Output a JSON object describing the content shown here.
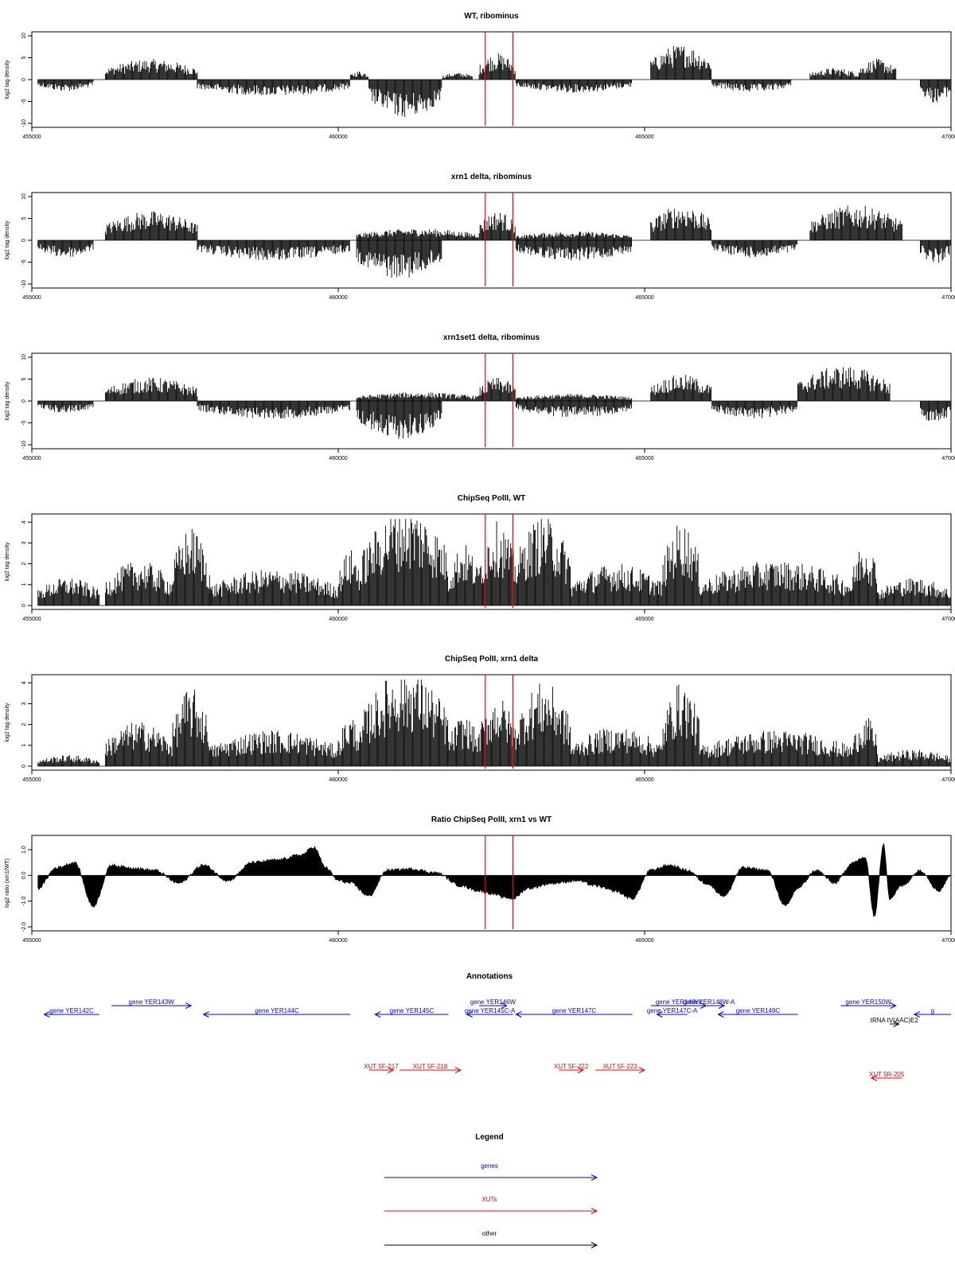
{
  "axis": {
    "xlim": [
      455000,
      470000
    ],
    "xticks": [
      455000,
      460000,
      465000,
      470000
    ],
    "xtick_labels": [
      "455000",
      "460000",
      "465000",
      "470000"
    ]
  },
  "marker_lines": {
    "positions": [
      462400,
      462850
    ],
    "color": "#ff0000"
  },
  "chart_data": [
    {
      "type": "bar",
      "title": "WT, ribominus",
      "ylabel": "log2 tag density",
      "ylim": [
        -10,
        10
      ],
      "yticks": [
        -10,
        -5,
        0,
        5,
        10
      ],
      "ytick_labels": [
        "-10",
        "-5",
        "0",
        "5",
        "10"
      ],
      "segments": [
        {
          "start": 455100,
          "end": 456000,
          "sign": -1,
          "level": 2.0
        },
        {
          "start": 456200,
          "end": 457700,
          "sign": 1,
          "level": 3.5
        },
        {
          "start": 457700,
          "end": 460200,
          "sign": -1,
          "level": 2.8
        },
        {
          "start": 460200,
          "end": 460500,
          "sign": 1,
          "level": 1.5
        },
        {
          "start": 460500,
          "end": 461700,
          "sign": -1,
          "level": 6.5
        },
        {
          "start": 461700,
          "end": 462200,
          "sign": 1,
          "level": 1.2
        },
        {
          "start": 462300,
          "end": 462900,
          "sign": 1,
          "level": 4.5
        },
        {
          "start": 462900,
          "end": 464800,
          "sign": -1,
          "level": 2.2
        },
        {
          "start": 465100,
          "end": 466100,
          "sign": 1,
          "level": 6.0
        },
        {
          "start": 466100,
          "end": 467400,
          "sign": -1,
          "level": 2.2
        },
        {
          "start": 467700,
          "end": 468500,
          "sign": 1,
          "level": 2.0
        },
        {
          "start": 468500,
          "end": 469100,
          "sign": 1,
          "level": 3.5
        },
        {
          "start": 469500,
          "end": 470000,
          "sign": -1,
          "level": 4.0
        }
      ]
    },
    {
      "type": "bar",
      "title": "xrn1 delta, ribominus",
      "ylabel": "log2 tag density",
      "ylim": [
        -10,
        10
      ],
      "yticks": [
        -10,
        -5,
        0,
        5,
        10
      ],
      "ytick_labels": [
        "-10",
        "-5",
        "0",
        "5",
        "10"
      ],
      "segments": [
        {
          "start": 455100,
          "end": 456000,
          "sign": -1,
          "level": 3.0
        },
        {
          "start": 456200,
          "end": 457700,
          "sign": 1,
          "level": 5.0
        },
        {
          "start": 457700,
          "end": 460200,
          "sign": -1,
          "level": 3.5
        },
        {
          "start": 460300,
          "end": 461700,
          "sign": -1,
          "level": 6.5
        },
        {
          "start": 460300,
          "end": 462300,
          "sign": 1,
          "level": 2.0
        },
        {
          "start": 462300,
          "end": 462900,
          "sign": 1,
          "level": 5.0
        },
        {
          "start": 462900,
          "end": 464800,
          "sign": -1,
          "level": 3.5
        },
        {
          "start": 462900,
          "end": 464800,
          "sign": 1,
          "level": 1.5
        },
        {
          "start": 465100,
          "end": 466100,
          "sign": 1,
          "level": 6.0
        },
        {
          "start": 466100,
          "end": 467500,
          "sign": -1,
          "level": 3.0
        },
        {
          "start": 467700,
          "end": 469200,
          "sign": 1,
          "level": 6.0
        },
        {
          "start": 469500,
          "end": 470000,
          "sign": -1,
          "level": 4.0
        }
      ]
    },
    {
      "type": "bar",
      "title": "xrn1set1 delta, ribominus",
      "ylabel": "log2 tag density",
      "ylim": [
        -10,
        10
      ],
      "yticks": [
        -10,
        -5,
        0,
        5,
        10
      ],
      "ytick_labels": [
        "-10",
        "-5",
        "0",
        "5",
        "10"
      ],
      "segments": [
        {
          "start": 455100,
          "end": 456000,
          "sign": -1,
          "level": 2.0
        },
        {
          "start": 456200,
          "end": 457700,
          "sign": 1,
          "level": 4.0
        },
        {
          "start": 457700,
          "end": 460200,
          "sign": -1,
          "level": 3.0
        },
        {
          "start": 460300,
          "end": 461700,
          "sign": -1,
          "level": 6.5
        },
        {
          "start": 460300,
          "end": 462300,
          "sign": 1,
          "level": 1.5
        },
        {
          "start": 462300,
          "end": 462900,
          "sign": 1,
          "level": 4.0
        },
        {
          "start": 462900,
          "end": 464800,
          "sign": -1,
          "level": 2.8
        },
        {
          "start": 462900,
          "end": 464800,
          "sign": 1,
          "level": 1.2
        },
        {
          "start": 465100,
          "end": 466100,
          "sign": 1,
          "level": 4.5
        },
        {
          "start": 466100,
          "end": 467500,
          "sign": -1,
          "level": 3.0
        },
        {
          "start": 467500,
          "end": 469000,
          "sign": 1,
          "level": 6.0
        },
        {
          "start": 469500,
          "end": 470000,
          "sign": -1,
          "level": 4.0
        }
      ]
    },
    {
      "type": "bar",
      "title": "ChipSeq PolII, WT",
      "ylabel": "log2 tag density",
      "ylim": [
        0,
        4.2
      ],
      "yticks": [
        0,
        1,
        2,
        3,
        4
      ],
      "ytick_labels": [
        "0",
        "1",
        "2",
        "3",
        "4"
      ],
      "segments": [
        {
          "start": 455100,
          "end": 456100,
          "sign": 1,
          "level": 1.0
        },
        {
          "start": 456200,
          "end": 457300,
          "sign": 1,
          "level": 1.6
        },
        {
          "start": 457300,
          "end": 457900,
          "sign": 1,
          "level": 2.8
        },
        {
          "start": 457900,
          "end": 460000,
          "sign": 1,
          "level": 1.3
        },
        {
          "start": 460000,
          "end": 460400,
          "sign": 1,
          "level": 2.0
        },
        {
          "start": 460400,
          "end": 461800,
          "sign": 1,
          "level": 3.6
        },
        {
          "start": 461800,
          "end": 462300,
          "sign": 1,
          "level": 2.2
        },
        {
          "start": 462300,
          "end": 462900,
          "sign": 1,
          "level": 3.0
        },
        {
          "start": 462900,
          "end": 463800,
          "sign": 1,
          "level": 3.2
        },
        {
          "start": 463800,
          "end": 465300,
          "sign": 1,
          "level": 1.5
        },
        {
          "start": 465300,
          "end": 465900,
          "sign": 1,
          "level": 3.0
        },
        {
          "start": 465900,
          "end": 468400,
          "sign": 1,
          "level": 1.6
        },
        {
          "start": 468400,
          "end": 468800,
          "sign": 1,
          "level": 2.4
        },
        {
          "start": 468800,
          "end": 470000,
          "sign": 1,
          "level": 1.0
        }
      ]
    },
    {
      "type": "bar",
      "title": "ChipSeq PolII, xrn1 delta",
      "ylabel": "log2 tag density",
      "ylim": [
        0,
        4.2
      ],
      "yticks": [
        0,
        1,
        2,
        3,
        4
      ],
      "ytick_labels": [
        "0",
        "1",
        "2",
        "3",
        "4"
      ],
      "segments": [
        {
          "start": 455100,
          "end": 456100,
          "sign": 1,
          "level": 0.4
        },
        {
          "start": 456200,
          "end": 457300,
          "sign": 1,
          "level": 1.6
        },
        {
          "start": 457300,
          "end": 457900,
          "sign": 1,
          "level": 2.8
        },
        {
          "start": 457900,
          "end": 460000,
          "sign": 1,
          "level": 1.3
        },
        {
          "start": 460000,
          "end": 460400,
          "sign": 1,
          "level": 1.8
        },
        {
          "start": 460400,
          "end": 461800,
          "sign": 1,
          "level": 3.5
        },
        {
          "start": 461800,
          "end": 462300,
          "sign": 1,
          "level": 1.8
        },
        {
          "start": 462300,
          "end": 462900,
          "sign": 1,
          "level": 2.5
        },
        {
          "start": 462900,
          "end": 463800,
          "sign": 1,
          "level": 3.0
        },
        {
          "start": 463800,
          "end": 465300,
          "sign": 1,
          "level": 1.4
        },
        {
          "start": 465300,
          "end": 465900,
          "sign": 1,
          "level": 3.0
        },
        {
          "start": 465900,
          "end": 468400,
          "sign": 1,
          "level": 1.3
        },
        {
          "start": 468400,
          "end": 468800,
          "sign": 1,
          "level": 1.8
        },
        {
          "start": 468800,
          "end": 470000,
          "sign": 1,
          "level": 0.6
        }
      ]
    },
    {
      "type": "area",
      "title": "Ratio ChipSeq PolII, xrn1 vs WT",
      "ylabel": "log2 ratio (xrn1/WT)",
      "ylim": [
        -2.0,
        1.4
      ],
      "yticks": [
        -2,
        -1,
        0,
        1
      ],
      "ytick_labels": [
        "-2.0",
        "-1.0",
        "0.0",
        "1.0"
      ],
      "x": [
        455100,
        455400,
        455700,
        456000,
        456300,
        456600,
        457000,
        457400,
        457800,
        458200,
        458600,
        459000,
        459400,
        459600,
        459800,
        460000,
        460200,
        460500,
        460800,
        461200,
        461600,
        462000,
        462300,
        462500,
        462700,
        462850,
        463100,
        463500,
        463900,
        464200,
        464500,
        464800,
        465100,
        465400,
        465700,
        466000,
        466300,
        466600,
        467000,
        467300,
        467500,
        467800,
        468100,
        468400,
        468600,
        468750,
        468900,
        469000,
        469200,
        469500,
        469800,
        470000
      ],
      "values": [
        -0.5,
        0.3,
        0.5,
        -1.2,
        0.4,
        0.3,
        0.2,
        -0.3,
        0.4,
        -0.2,
        0.5,
        0.6,
        0.8,
        1.1,
        0.3,
        -0.2,
        -0.3,
        -0.8,
        0.2,
        0.25,
        0.1,
        -0.4,
        -0.6,
        -0.7,
        -0.85,
        -0.9,
        -0.5,
        -0.3,
        -0.2,
        -0.4,
        -0.6,
        -0.9,
        0.2,
        0.4,
        0.2,
        -0.3,
        -0.8,
        0.3,
        0.2,
        -1.2,
        -0.5,
        0.2,
        -0.3,
        0.5,
        0.7,
        -1.6,
        1.2,
        -0.9,
        -0.4,
        0.2,
        -0.6,
        0.0
      ]
    }
  ],
  "annotations": {
    "title": "Annotations",
    "features": [
      {
        "label": "gene YER142C",
        "kind": "gene",
        "start": 455200,
        "end": 456100,
        "strand": "-",
        "row": 1
      },
      {
        "label": "gene YER143W",
        "kind": "gene",
        "start": 456300,
        "end": 457600,
        "strand": "+",
        "row": 0
      },
      {
        "label": "gene YER144C",
        "kind": "gene",
        "start": 457800,
        "end": 460200,
        "strand": "-",
        "row": 1
      },
      {
        "label": "gene YER145C",
        "kind": "gene",
        "start": 460600,
        "end": 461800,
        "strand": "-",
        "row": 1
      },
      {
        "label": "gene YER146W",
        "kind": "gene",
        "start": 462300,
        "end": 462750,
        "strand": "+",
        "row": 0
      },
      {
        "label": "gene YER145C-A",
        "kind": "gene",
        "start": 462100,
        "end": 462850,
        "strand": "-",
        "row": 1
      },
      {
        "label": "gene YER147C",
        "kind": "gene",
        "start": 462900,
        "end": 464800,
        "strand": "-",
        "row": 1
      },
      {
        "label": "gene YER148W",
        "kind": "gene",
        "start": 465100,
        "end": 466000,
        "strand": "+",
        "row": 0
      },
      {
        "label": "gene YER147C-A",
        "kind": "gene",
        "start": 465200,
        "end": 465700,
        "strand": "-",
        "row": 1
      },
      {
        "label": "gene YER148W-A",
        "kind": "gene",
        "start": 465800,
        "end": 466300,
        "strand": "+",
        "row": 0
      },
      {
        "label": "gene YER149C",
        "kind": "gene",
        "start": 466200,
        "end": 467500,
        "strand": "-",
        "row": 1
      },
      {
        "label": "gene YER150W",
        "kind": "gene",
        "start": 468200,
        "end": 469100,
        "strand": "+",
        "row": 0
      },
      {
        "label": "tRNA tV(AAC)E2",
        "kind": "other",
        "start": 469000,
        "end": 469150,
        "strand": "+",
        "row": 2
      },
      {
        "label": "g",
        "kind": "gene",
        "start": 469400,
        "end": 470700,
        "strand": "-",
        "row": 1
      },
      {
        "label": "XUT 5F-217",
        "kind": "xut",
        "start": 460500,
        "end": 460900,
        "strand": "+",
        "row": 0
      },
      {
        "label": "XUT 5F-218",
        "kind": "xut",
        "start": 461000,
        "end": 462000,
        "strand": "+",
        "row": 0
      },
      {
        "label": "XUT 5F-222",
        "kind": "xut",
        "start": 463600,
        "end": 464000,
        "strand": "+",
        "row": 0
      },
      {
        "label": "XUT 5F-223",
        "kind": "xut",
        "start": 464200,
        "end": 465000,
        "strand": "+",
        "row": 0
      },
      {
        "label": "XUT 5R-205",
        "kind": "xut",
        "start": 468700,
        "end": 469200,
        "strand": "-",
        "row": 1
      }
    ]
  },
  "legend": {
    "title": "Legend",
    "entries": [
      {
        "label": "genes",
        "color": "#0000ff"
      },
      {
        "label": "XUTs",
        "color": "#ff0000"
      },
      {
        "label": "other",
        "color": "#000000"
      }
    ]
  },
  "colors": {
    "gene": "#0000ff",
    "xut": "#ff0000",
    "other": "#000000",
    "bars": "#000000",
    "frame": "#000000"
  }
}
